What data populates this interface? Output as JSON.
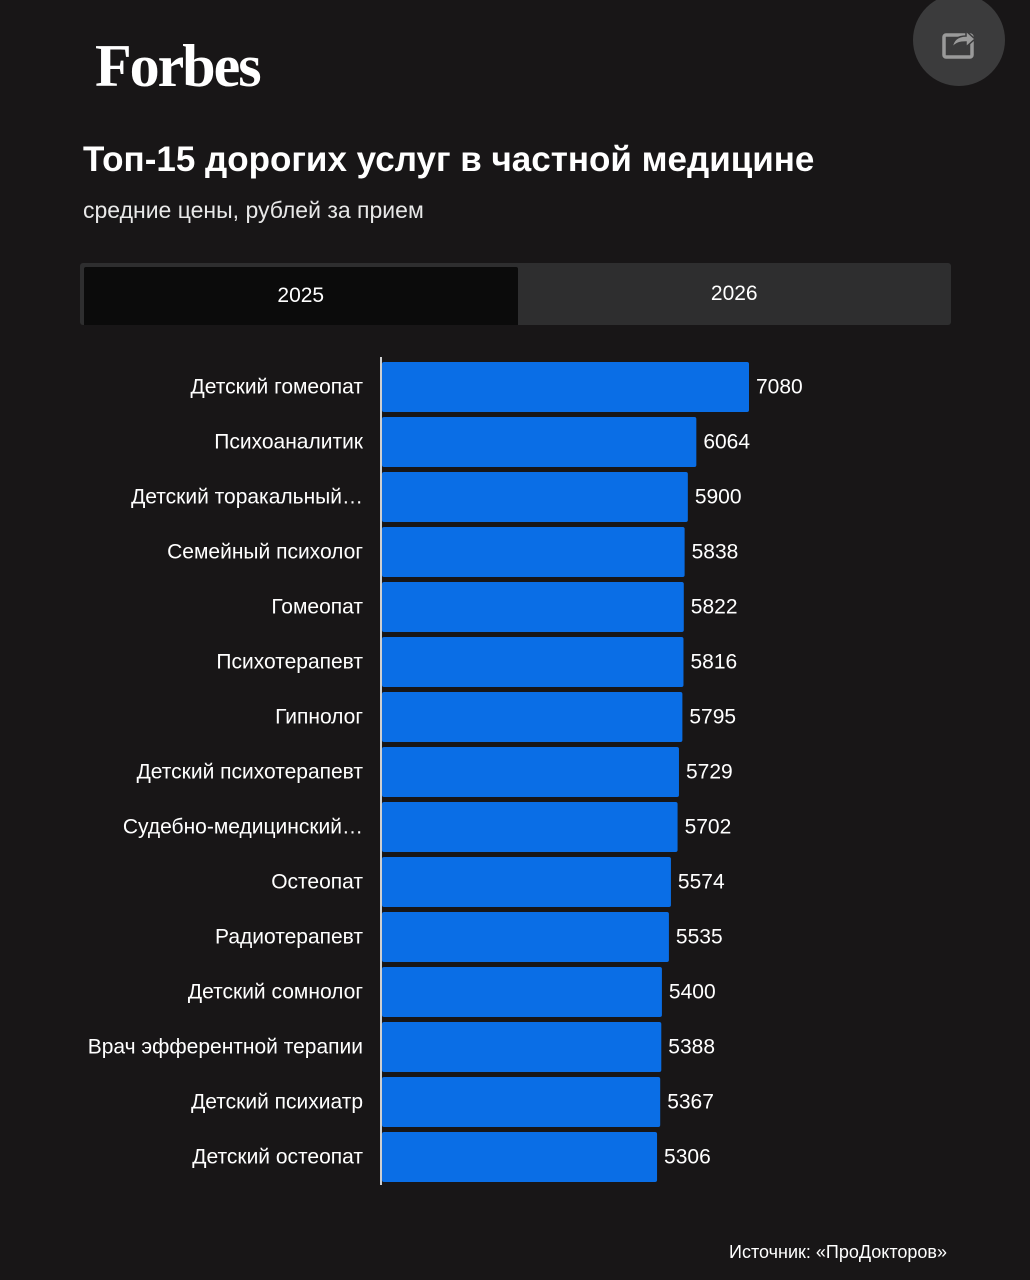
{
  "brand": "Forbes",
  "share": {
    "icon": "share-icon"
  },
  "title": "Топ-15 дорогих услуг в частной медицине",
  "subtitle": "средние цены, рублей за прием",
  "tabs": [
    {
      "label": "2025",
      "active": true
    },
    {
      "label": "2026",
      "active": false
    }
  ],
  "colors": {
    "background": "#181617",
    "bar": "#0a6ee6",
    "tab_inactive": "#2e2e2f",
    "tab_active": "#0b0b0b"
  },
  "chart_data": {
    "type": "bar",
    "orientation": "horizontal",
    "categories": [
      "Детский гомеопат",
      "Психоаналитик",
      "Детский торакальный…",
      "Семейный психолог",
      "Гомеопат",
      "Психотерапевт",
      "Гипнолог",
      "Детский психотерапевт",
      "Судебно-медицинский…",
      "Остеопат",
      "Радиотерапевт",
      "Детский сомнолог",
      "Врач эфферентной терапии",
      "Детский психиатр",
      "Детский остеопат"
    ],
    "values": [
      7080,
      6064,
      5900,
      5838,
      5822,
      5816,
      5795,
      5729,
      5702,
      5574,
      5535,
      5400,
      5388,
      5367,
      5306
    ],
    "data_labels": true,
    "grid": false,
    "legend": "none"
  },
  "source": "Источник: «ПроДокторов»"
}
